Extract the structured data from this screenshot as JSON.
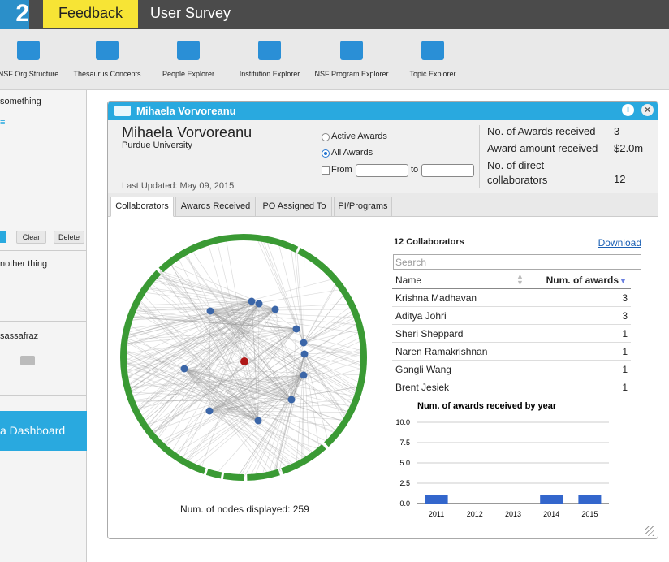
{
  "header": {
    "logo": "2",
    "tabs": [
      "Feedback",
      "User Survey"
    ]
  },
  "toolbar": [
    "NSF Org Structure",
    "Thesaurus Concepts",
    "People Explorer",
    "Institution Explorer",
    "NSF Program Explorer",
    "Topic Explorer"
  ],
  "sidebar": {
    "first_item": "something",
    "buttons": [
      "Clear",
      "Delete"
    ],
    "notes": [
      "nother thing",
      "sassafraz"
    ],
    "dashboard": "a Dashboard"
  },
  "panel": {
    "title": "Mihaela Vorvoreanu",
    "name": "Mihaela Vorvoreanu",
    "affiliation": "Purdue University",
    "last_updated": "Last Updated: May 09, 2015",
    "filters": [
      "Active Awards",
      "All Awards"
    ],
    "from": "From",
    "to": "to",
    "stats": [
      {
        "label": "No. of Awards received",
        "value": 3
      },
      {
        "label": "Award amount received",
        "value": "$2.0m"
      },
      {
        "label": "No. of direct collaborators",
        "value": 12
      }
    ],
    "tabs": [
      "Collaborators",
      "Awards Received",
      "PO Assigned To",
      "PI/Programs"
    ],
    "network_caption": "Num. of nodes displayed: 259",
    "collaborators": {
      "title": "12 Collaborators",
      "download": "Download",
      "search": "Search",
      "columns": [
        "Name",
        "Num. of awards"
      ],
      "rows": [
        [
          "Krishna Madhavan",
          3
        ],
        [
          "Aditya Johri",
          3
        ],
        [
          "Sheri Sheppard",
          1
        ],
        [
          "Naren Ramakrishnan",
          1
        ],
        [
          "Gangli Wang",
          1
        ],
        [
          "Brent Jesiek",
          1
        ]
      ]
    }
  },
  "chart_data": {
    "type": "bar",
    "title": "Num. of awards received by year",
    "categories": [
      "2011",
      "2012",
      "2013",
      "2014",
      "2015"
    ],
    "values": [
      1,
      0,
      0,
      1,
      1
    ],
    "color": "#3366cc",
    "ylim": [
      0,
      10
    ],
    "yticks": [
      {
        "value": 0,
        "label": "0.0"
      },
      2.5,
      {
        "value": 5,
        "label": "5.0"
      },
      7.5,
      {
        "value": 10,
        "label": "10.0"
      }
    ],
    "grid": true
  }
}
